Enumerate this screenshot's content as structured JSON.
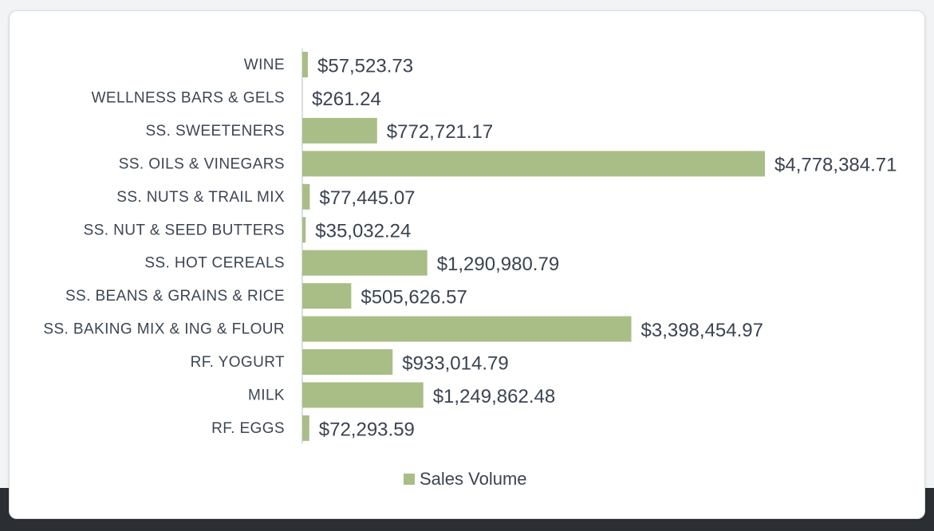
{
  "chart_data": {
    "type": "bar",
    "orientation": "horizontal",
    "categories": [
      "WINE",
      "WELLNESS BARS & GELS",
      "SS. SWEETENERS",
      "SS. OILS & VINEGARS",
      "SS. NUTS & TRAIL MIX",
      "SS. NUT & SEED BUTTERS",
      "SS. HOT CEREALS",
      "SS. BEANS & GRAINS & RICE",
      "SS. BAKING MIX & ING & FLOUR",
      "RF. YOGURT",
      "MILK",
      "RF. EGGS"
    ],
    "series": [
      {
        "name": "Sales Volume",
        "color": "#a8be86",
        "values": [
          57523.73,
          261.24,
          772721.17,
          4778384.71,
          77445.07,
          35032.24,
          1290980.79,
          505626.57,
          3398454.97,
          933014.79,
          1249862.48,
          72293.59
        ],
        "labels": [
          "$57,523.73",
          "$261.24",
          "$772,721.17",
          "$4,778,384.71",
          "$77,445.07",
          "$35,032.24",
          "$1,290,980.79",
          "$505,626.57",
          "$3,398,454.97",
          "$933,014.79",
          "$1,249,862.48",
          "$72,293.59"
        ]
      }
    ],
    "legend": {
      "position": "bottom",
      "label": "Sales Volume"
    },
    "xlim": [
      0,
      4778384.71
    ],
    "grid": false,
    "title": "",
    "xlabel": "",
    "ylabel": ""
  }
}
